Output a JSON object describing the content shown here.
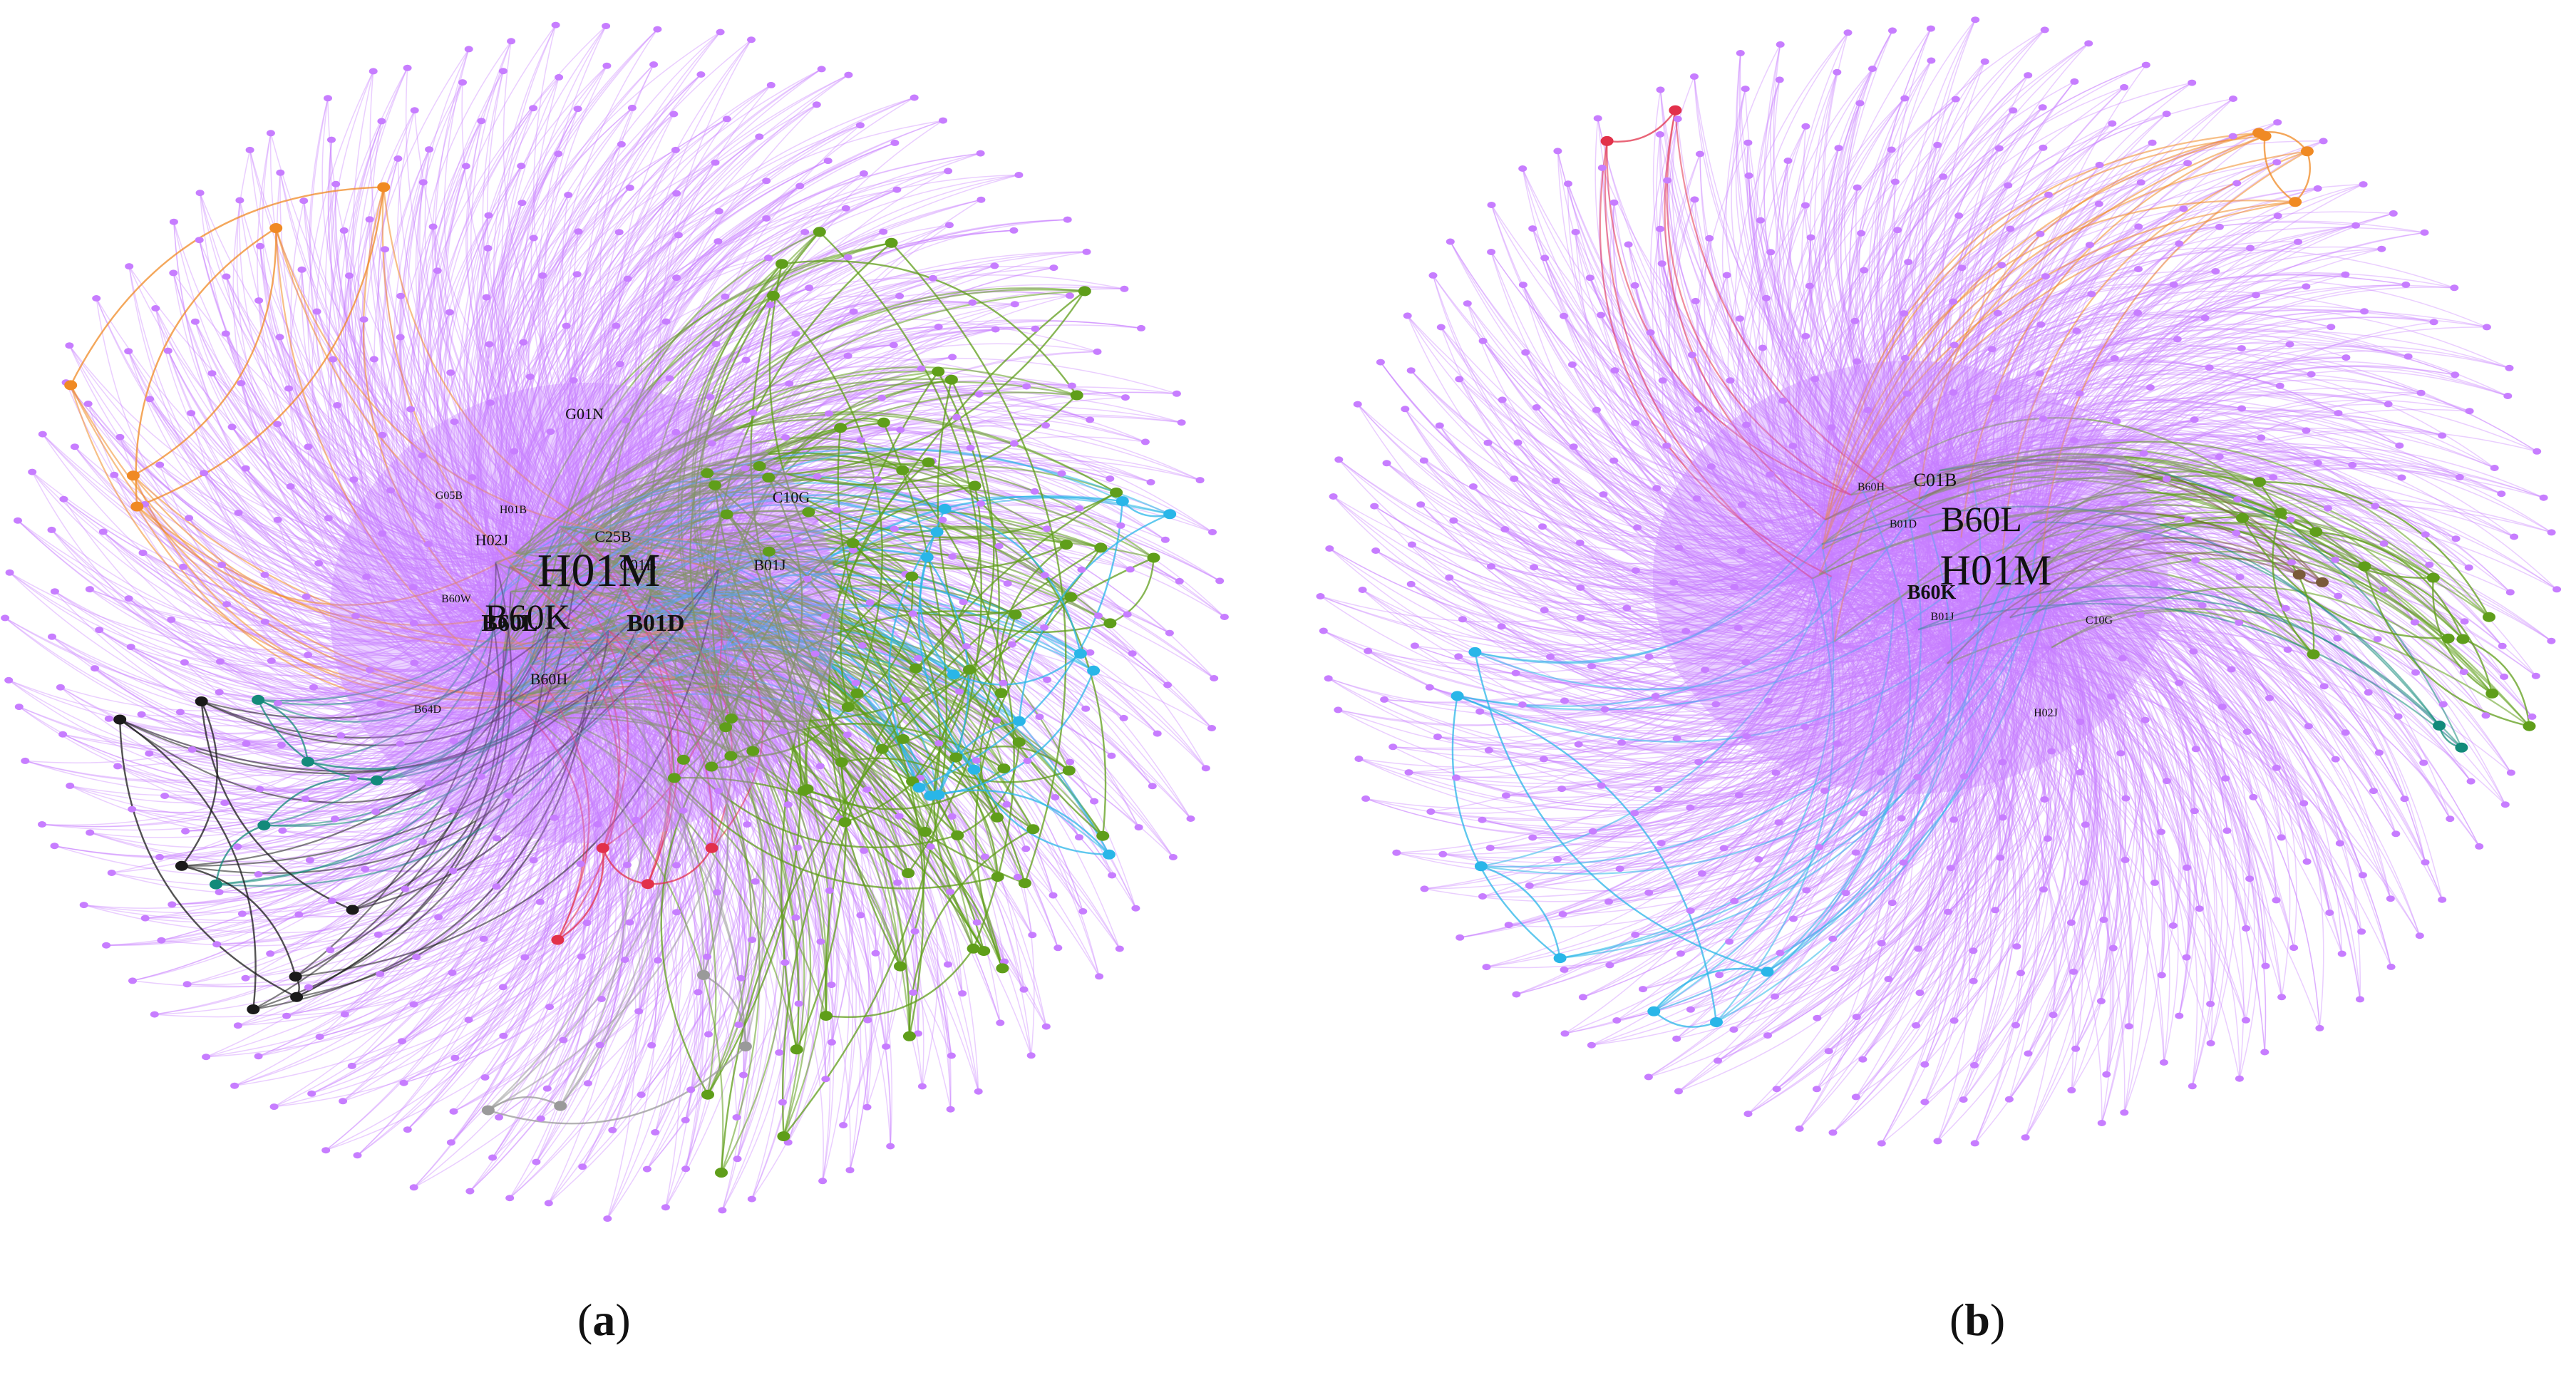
{
  "figure": {
    "panels": [
      {
        "id": "a",
        "caption_letter": "a",
        "colors": {
          "primary": "#c77dff",
          "green": "#5f9e1a",
          "blue": "#29b6e8",
          "orange": "#f08a24",
          "black": "#1a1a1a",
          "teal": "#138a7a",
          "red": "#e2304a",
          "grey": "#9a9a9a"
        },
        "labels": [
          {
            "text": "H01M",
            "size": "xl"
          },
          {
            "text": "B60K",
            "size": "l"
          },
          {
            "text": "B01D",
            "size": "m"
          },
          {
            "text": "B60L",
            "size": "m"
          },
          {
            "text": "B60H",
            "size": "s"
          },
          {
            "text": "C01B",
            "size": "s"
          },
          {
            "text": "B01J",
            "size": "s"
          },
          {
            "text": "C25B",
            "size": "s"
          },
          {
            "text": "C10G",
            "size": "s"
          },
          {
            "text": "G01N",
            "size": "s"
          },
          {
            "text": "H02J",
            "size": "s"
          },
          {
            "text": "H01B",
            "size": "xs"
          },
          {
            "text": "B60W",
            "size": "xs"
          },
          {
            "text": "B64D",
            "size": "xs"
          },
          {
            "text": "G05B",
            "size": "xs"
          }
        ]
      },
      {
        "id": "b",
        "caption_letter": "b",
        "colors": {
          "primary": "#c77dff",
          "green": "#5f9e1a",
          "blue": "#29b6e8",
          "orange": "#f08a24",
          "teal": "#138a7a",
          "red": "#e2304a",
          "brown": "#7a5a3a"
        },
        "labels": [
          {
            "text": "H01M",
            "size": "xl"
          },
          {
            "text": "B60L",
            "size": "l"
          },
          {
            "text": "B60K",
            "size": "m"
          },
          {
            "text": "C01B",
            "size": "s"
          },
          {
            "text": "B01D",
            "size": "xs"
          },
          {
            "text": "B60H",
            "size": "xs"
          },
          {
            "text": "B01J",
            "size": "xs"
          },
          {
            "text": "C10G",
            "size": "xs"
          },
          {
            "text": "H02J",
            "size": "xs"
          }
        ]
      }
    ]
  }
}
